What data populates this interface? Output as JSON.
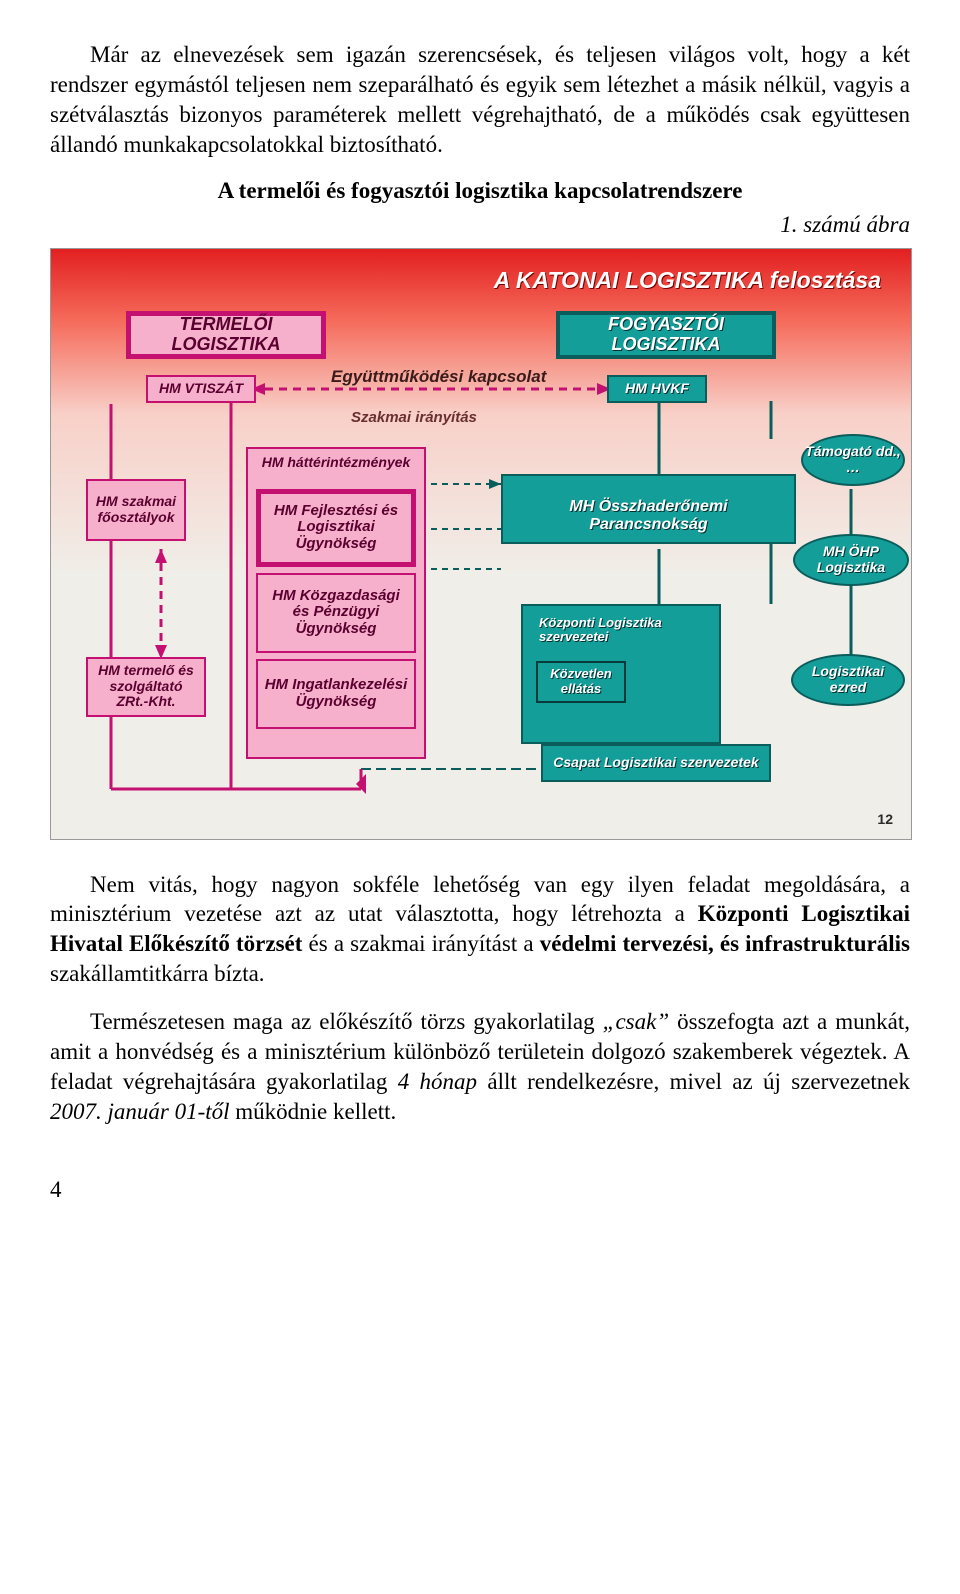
{
  "para1": "Már az elnevezések sem igazán szerencsések, és teljesen világos volt, hogy a két rendszer egymástól teljesen nem szeparálható és egyik sem létezhet a másik nélkül, vagyis a szétválasztás bizonyos paraméterek mellett végrehajtható, de a működés csak együttesen állandó munkakapcsolatokkal biztosítható.",
  "heading": "A termelői és fogyasztói logisztika kapcsolatrendszere",
  "figcap": "1. számú ábra",
  "fig": {
    "title": "A KATONAI LOGISZTIKA felosztása",
    "termeloi": "TERMELŐI LOGISZTIKA",
    "fogyasztoi": "FOGYASZTÓI LOGISZTIKA",
    "egyuttmukodesi": "Együttműködési  kapcsolat",
    "szakmai": "Szakmai irányítás",
    "hmvtiszat": "HM VTISZÁT",
    "hmhvkf": "HM HVKF",
    "hatterint": "HM háttérintézmények",
    "fejl": "HM Fejlesztési és Logisztikai Ügynökség",
    "kozg": "HM Közgazdasági és Pénzügyi Ügynökség",
    "ingat": "HM Ingatlankezelési Ügynökség",
    "szakmaifo": "HM szakmai főosztályok",
    "termelo": "HM termelő és szolgáltató ZRt.-Kht.",
    "ohp": "MH Összhaderőnemi Parancsnokság",
    "kozponti": "Központi Logisztika szervezetei",
    "kozvetlen": "Közvetlen ellátás",
    "csapat": "Csapat Logisztikai szervezetek",
    "tamogato": "Támogató dd., …",
    "ohplog": "MH ÖHP Logisztika",
    "logezred": "Logisztikai ezred",
    "pagenum12": "12"
  },
  "para2_html": "Nem vitás, hogy nagyon sokféle lehetőség van egy ilyen feladat megoldására, a minisztérium vezetése azt az utat választotta, hogy létrehozta a <b>Központi Logisztikai Hivatal Előkészítő törzsét</b> és a szakmai irányítást a <b>védelmi tervezési, és infrastrukturális</b> szakállamtitkárra bízta.",
  "para3_html": "Természetesen maga az előkészítő törzs gyakorlatilag <i>„csak”</i> összefogta azt a munkát, amit a honvédség és a minisztérium különböző területein dolgozó szakemberek végeztek. A feladat végrehajtására gyakorlatilag <i>4 hónap</i> állt rendelkezésre, mivel az új szervezetnek <i>2007. január 01-től</i> működnie kellett.",
  "pageNumber": "4"
}
